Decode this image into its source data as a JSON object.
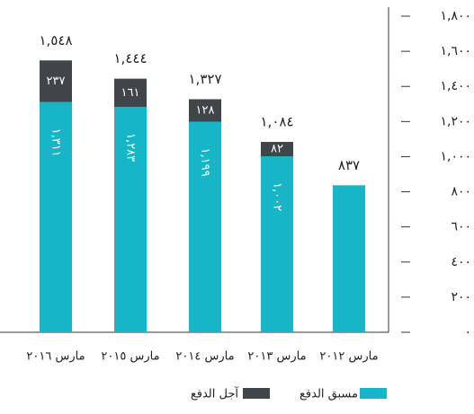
{
  "chart_data": {
    "type": "stacked_bar",
    "categories": [
      "مارس ٢٠١٦",
      "مارس ٢٠١٥",
      "مارس ٢٠١٤",
      "مارس ٢٠١٣",
      "مارس ٢٠١٢"
    ],
    "series": [
      {
        "name": "مسبق الدفع",
        "color": "#17b5c8",
        "values": [
          1311,
          1283,
          1199,
          1002,
          837
        ],
        "value_labels": [
          "١,٣١١",
          "١,٢٨٣",
          "١,١٩٩",
          "١,٠٠٢",
          null
        ]
      },
      {
        "name": "آجل الدفع",
        "color": "#3f4549",
        "values": [
          237,
          161,
          128,
          82,
          null
        ],
        "value_labels": [
          "٢٣٧",
          "١٦١",
          "١٢٨",
          "٨٢",
          null
        ]
      }
    ],
    "totals": [
      1548,
      1444,
      1327,
      1084,
      837
    ],
    "total_labels": [
      "١,٥٤٨",
      "١,٤٤٤",
      "١,٣٢٧",
      "١,٠٨٤",
      "٨٣٧"
    ],
    "ylim": [
      0,
      1800
    ],
    "yticks": [
      {
        "value": 0,
        "label": "٠"
      },
      {
        "value": 200,
        "label": "٢٠٠"
      },
      {
        "value": 400,
        "label": "٤٠٠"
      },
      {
        "value": 600,
        "label": "٦٠٠"
      },
      {
        "value": 800,
        "label": "٨٠٠"
      },
      {
        "value": 1000,
        "label": "١,٠٠٠"
      },
      {
        "value": 1200,
        "label": "١,٢٠٠"
      },
      {
        "value": 1400,
        "label": "١,٤٠٠"
      },
      {
        "value": 1600,
        "label": "١,٦٠٠"
      },
      {
        "value": 1800,
        "label": "١,٨٠٠"
      }
    ],
    "axis_side": "right"
  }
}
